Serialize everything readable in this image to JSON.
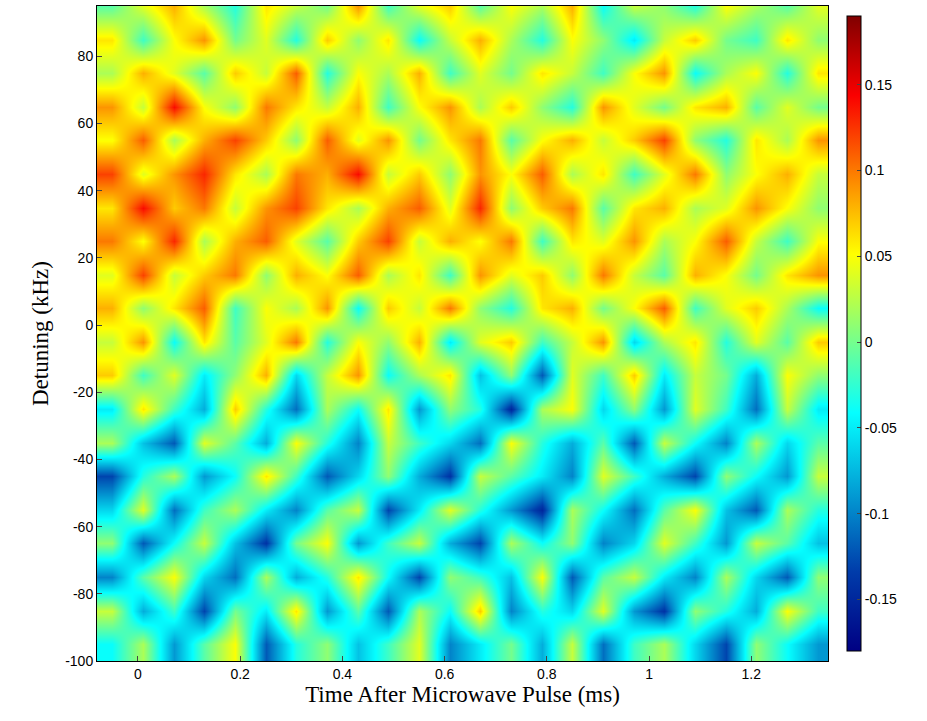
{
  "chart_data": {
    "type": "heatmap",
    "x_label": "Time After Microwave Pulse (ms)",
    "y_label": "Detuning (kHz)",
    "color": "Jet",
    "xlim": [
      -0.08,
      1.35
    ],
    "ylim": [
      -100,
      95
    ],
    "xticks": [
      0,
      0.2,
      0.4,
      0.6,
      0.8,
      1,
      1.2
    ],
    "yticks": [
      -100,
      -80,
      -60,
      -40,
      -20,
      0,
      20,
      40,
      60,
      80
    ],
    "colorbar": {
      "range": [
        -0.18,
        0.19
      ],
      "ticks": [
        -0.15,
        -0.1,
        -0.05,
        0,
        0.05,
        0.1,
        0.15
      ]
    },
    "x": [
      -0.05,
      0.01,
      0.07,
      0.13,
      0.19,
      0.25,
      0.31,
      0.37,
      0.43,
      0.49,
      0.55,
      0.61,
      0.67,
      0.73,
      0.79,
      0.85,
      0.91,
      0.97,
      1.03,
      1.09,
      1.15,
      1.21,
      1.27,
      1.33
    ],
    "y": [
      -95,
      -85,
      -75,
      -65,
      -55,
      -45,
      -35,
      -25,
      -15,
      -5,
      5,
      15,
      25,
      35,
      45,
      55,
      65,
      75,
      85,
      95
    ],
    "cells": [
      [
        -0.04,
        0.02,
        -0.09,
        -0.01,
        0.05,
        -0.12,
        -0.03,
        0.01,
        -0.07,
        -0.02,
        0.04,
        -0.1,
        -0.05,
        0.0,
        -0.08,
        0.03,
        -0.11,
        -0.02,
        0.02,
        -0.06,
        -0.13,
        0.01,
        -0.04,
        -0.09
      ],
      [
        0.03,
        -0.08,
        -0.02,
        -0.13,
        0.0,
        -0.05,
        0.06,
        -0.09,
        -0.01,
        -0.12,
        0.02,
        -0.04,
        0.07,
        -0.1,
        -0.03,
        -0.06,
        0.04,
        -0.09,
        -0.14,
        0.01,
        -0.03,
        -0.08,
        0.05,
        -0.02
      ],
      [
        -0.1,
        -0.01,
        0.05,
        -0.06,
        -0.11,
        0.02,
        -0.08,
        -0.03,
        0.06,
        -0.04,
        -0.13,
        0.01,
        -0.02,
        -0.07,
        0.05,
        -0.12,
        -0.01,
        0.03,
        -0.05,
        -0.1,
        0.02,
        -0.06,
        -0.12,
        0.01
      ],
      [
        0.01,
        -0.12,
        -0.04,
        0.03,
        -0.07,
        -0.14,
        0.0,
        0.05,
        -0.09,
        -0.02,
        0.03,
        -0.08,
        -0.13,
        0.02,
        -0.04,
        0.01,
        -0.1,
        -0.06,
        0.04,
        -0.02,
        -0.09,
        0.03,
        -0.01,
        -0.07
      ],
      [
        -0.06,
        0.04,
        -0.11,
        -0.02,
        0.02,
        -0.05,
        -0.1,
        -0.01,
        0.03,
        -0.13,
        -0.05,
        0.04,
        -0.03,
        -0.09,
        -0.15,
        0.02,
        -0.04,
        -0.11,
        -0.01,
        0.05,
        -0.07,
        -0.12,
        0.02,
        -0.03
      ],
      [
        -0.13,
        -0.03,
        0.02,
        -0.09,
        -0.04,
        0.06,
        -0.02,
        -0.12,
        -0.06,
        0.01,
        -0.08,
        -0.14,
        0.03,
        -0.01,
        -0.05,
        -0.1,
        0.04,
        -0.02,
        -0.08,
        -0.13,
        0.01,
        -0.04,
        -0.09,
        0.03
      ],
      [
        0.02,
        -0.07,
        -0.12,
        0.04,
        -0.01,
        -0.08,
        0.05,
        -0.03,
        -0.1,
        0.03,
        -0.02,
        -0.06,
        -0.11,
        0.05,
        -0.03,
        -0.08,
        -0.01,
        -0.12,
        0.03,
        -0.04,
        -0.1,
        0.02,
        -0.06,
        -0.01
      ],
      [
        -0.05,
        0.06,
        -0.02,
        -0.08,
        0.07,
        -0.03,
        -0.11,
        0.02,
        -0.04,
        0.06,
        -0.09,
        0.01,
        -0.03,
        -0.15,
        0.02,
        0.05,
        -0.06,
        0.01,
        -0.09,
        0.04,
        -0.02,
        -0.11,
        0.03,
        -0.05
      ],
      [
        0.07,
        -0.02,
        0.04,
        -0.05,
        0.01,
        0.08,
        -0.06,
        0.03,
        0.09,
        -0.04,
        0.02,
        0.06,
        -0.07,
        0.01,
        -0.12,
        0.04,
        -0.02,
        0.07,
        -0.05,
        0.03,
        0.0,
        -0.08,
        0.05,
        0.01
      ],
      [
        0.03,
        0.09,
        -0.04,
        0.06,
        -0.01,
        0.04,
        0.1,
        -0.03,
        0.05,
        0.01,
        0.08,
        -0.05,
        0.04,
        0.07,
        -0.02,
        0.03,
        0.09,
        -0.06,
        0.02,
        0.06,
        -0.03,
        0.04,
        -0.01,
        0.07
      ],
      [
        0.08,
        0.01,
        0.06,
        0.11,
        -0.02,
        0.05,
        0.02,
        0.09,
        -0.04,
        0.07,
        0.03,
        0.1,
        0.01,
        -0.03,
        0.06,
        0.08,
        0.0,
        0.05,
        0.11,
        -0.02,
        0.04,
        0.07,
        0.02,
        -0.04
      ],
      [
        0.04,
        0.12,
        0.03,
        0.07,
        0.1,
        0.01,
        0.08,
        0.05,
        0.11,
        0.02,
        0.06,
        -0.02,
        0.09,
        0.04,
        0.07,
        0.01,
        0.1,
        0.03,
        -0.01,
        0.08,
        0.05,
        0.0,
        0.06,
        0.09
      ],
      [
        0.1,
        0.05,
        0.13,
        0.02,
        0.08,
        0.11,
        0.04,
        -0.01,
        0.07,
        0.12,
        0.03,
        0.08,
        0.05,
        0.1,
        -0.02,
        0.06,
        0.04,
        0.09,
        0.02,
        0.05,
        0.11,
        0.03,
        -0.02,
        0.05
      ],
      [
        0.06,
        0.14,
        0.07,
        0.1,
        0.03,
        0.09,
        0.12,
        0.06,
        0.02,
        0.08,
        0.11,
        0.04,
        0.13,
        0.01,
        0.07,
        0.1,
        -0.01,
        0.06,
        0.08,
        0.02,
        0.04,
        0.09,
        0.05,
        0.01
      ],
      [
        0.12,
        0.04,
        0.09,
        0.13,
        0.06,
        0.02,
        0.1,
        0.08,
        0.14,
        0.03,
        0.07,
        0.01,
        0.09,
        0.05,
        0.11,
        0.02,
        0.06,
        -0.02,
        0.04,
        0.1,
        0.01,
        0.05,
        0.08,
        0.03
      ],
      [
        0.05,
        0.11,
        0.02,
        0.08,
        0.12,
        0.07,
        0.01,
        0.11,
        0.04,
        0.09,
        0.0,
        0.06,
        0.1,
        -0.01,
        0.05,
        0.08,
        0.03,
        0.07,
        0.12,
        0.01,
        -0.03,
        0.06,
        0.02,
        0.09
      ],
      [
        0.09,
        0.03,
        0.14,
        0.05,
        0.01,
        0.1,
        0.06,
        0.03,
        0.08,
        -0.02,
        0.05,
        0.09,
        0.02,
        0.07,
        0.01,
        -0.03,
        0.09,
        0.04,
        0.0,
        0.06,
        0.08,
        -0.01,
        0.04,
        0.0
      ],
      [
        0.02,
        0.08,
        0.04,
        -0.01,
        0.07,
        0.03,
        0.11,
        -0.03,
        0.05,
        0.02,
        0.08,
        -0.02,
        0.04,
        0.0,
        0.06,
        0.03,
        -0.02,
        0.05,
        0.09,
        -0.04,
        0.02,
        0.05,
        -0.03,
        0.06
      ],
      [
        0.06,
        -0.02,
        0.05,
        0.09,
        0.0,
        0.04,
        -0.03,
        0.07,
        0.01,
        0.06,
        -0.04,
        0.03,
        0.08,
        0.02,
        -0.03,
        0.05,
        0.01,
        -0.05,
        0.03,
        0.07,
        0.0,
        -0.02,
        0.06,
        0.01
      ],
      [
        -0.01,
        0.04,
        0.08,
        0.02,
        -0.03,
        0.06,
        0.03,
        0.0,
        0.09,
        -0.02,
        0.04,
        0.07,
        -0.01,
        0.05,
        0.02,
        0.08,
        -0.04,
        0.03,
        0.01,
        -0.03,
        0.05,
        0.02,
        -0.01,
        0.04
      ]
    ]
  }
}
